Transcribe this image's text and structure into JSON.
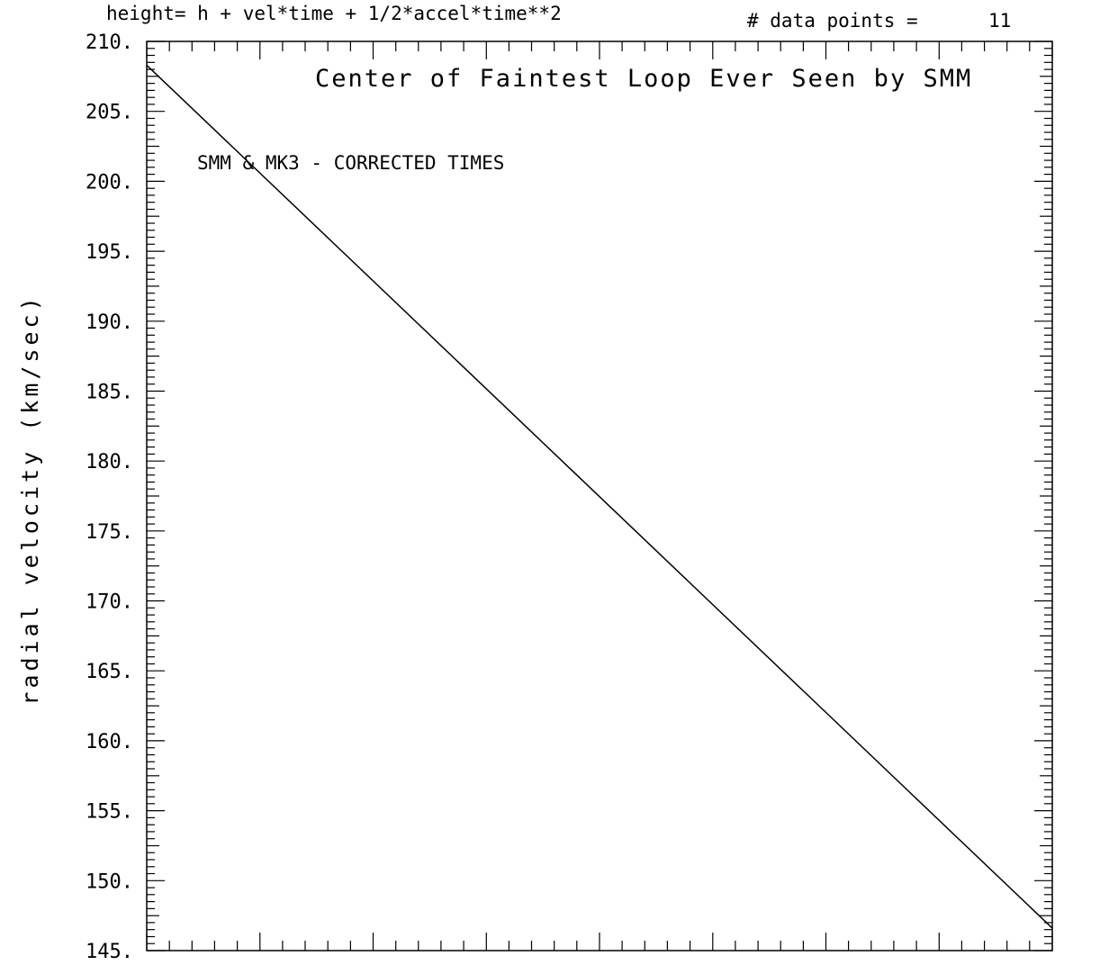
{
  "header": {
    "equation": "height= h + vel*time + 1/2*accel*time**2",
    "data_points_label": "# data points =",
    "data_points_value": "11"
  },
  "chart_data": {
    "type": "line",
    "title": "Center of Faintest Loop Ever Seen by SMM",
    "annotation": "SMM & MK3 - CORRECTED TIMES",
    "xlabel": "",
    "ylabel": "radial velocity (km/sec)",
    "ylim": [
      145,
      210
    ],
    "y_tick_labels": [
      "210.",
      "205.",
      "200.",
      "195.",
      "190.",
      "185.",
      "180.",
      "175.",
      "170.",
      "165.",
      "160.",
      "155.",
      "150.",
      "145."
    ],
    "x_tick_labels": [],
    "grid": false,
    "series": [
      {
        "x": [
          0,
          1
        ],
        "y": [
          208.3,
          146.6
        ]
      }
    ],
    "line_color": "#000000"
  }
}
